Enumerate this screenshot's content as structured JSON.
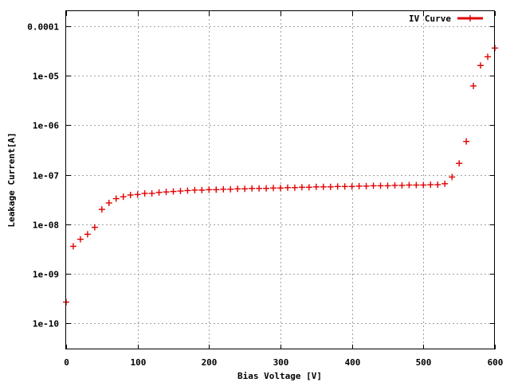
{
  "chart_data": {
    "type": "scatter",
    "xlabel": "Bias Voltage [V]",
    "ylabel": "Leakage Current[A]",
    "xlim": [
      0,
      600
    ],
    "ylim": [
      3e-11,
      0.0002
    ],
    "yscale": "log",
    "grid": true,
    "legend_position": "top-right",
    "x_ticks": [
      {
        "value": 0,
        "label": "0"
      },
      {
        "value": 100,
        "label": "100"
      },
      {
        "value": 200,
        "label": "200"
      },
      {
        "value": 300,
        "label": "300"
      },
      {
        "value": 400,
        "label": "400"
      },
      {
        "value": 500,
        "label": "500"
      },
      {
        "value": 600,
        "label": "600"
      }
    ],
    "y_ticks": [
      {
        "value": 1e-10,
        "label": "1e-10"
      },
      {
        "value": 1e-09,
        "label": "1e-09"
      },
      {
        "value": 1e-08,
        "label": "1e-08"
      },
      {
        "value": 1e-07,
        "label": "1e-07"
      },
      {
        "value": 1e-06,
        "label": "1e-06"
      },
      {
        "value": 1e-05,
        "label": "1e-05"
      },
      {
        "value": 0.0001,
        "label": "0.0001"
      }
    ],
    "series": [
      {
        "name": "IV Curve",
        "color": "#e00000",
        "marker": "plus",
        "x": [
          0,
          10,
          20,
          30,
          40,
          50,
          60,
          70,
          80,
          90,
          100,
          110,
          120,
          130,
          140,
          150,
          160,
          170,
          180,
          190,
          200,
          210,
          220,
          230,
          240,
          250,
          260,
          270,
          280,
          290,
          300,
          310,
          320,
          330,
          340,
          350,
          360,
          370,
          380,
          390,
          400,
          410,
          420,
          430,
          440,
          450,
          460,
          470,
          480,
          490,
          500,
          510,
          520,
          530,
          540,
          550,
          560,
          570,
          580,
          590,
          600
        ],
        "y": [
          2.7e-10,
          3.6e-09,
          5e-09,
          6.3e-09,
          8.7e-09,
          2e-08,
          2.7e-08,
          3.3e-08,
          3.6e-08,
          3.9e-08,
          4e-08,
          4.2e-08,
          4.2e-08,
          4.4e-08,
          4.5e-08,
          4.6e-08,
          4.7e-08,
          4.8e-08,
          4.9e-08,
          4.9e-08,
          5e-08,
          5e-08,
          5.1e-08,
          5.1e-08,
          5.2e-08,
          5.2e-08,
          5.3e-08,
          5.3e-08,
          5.3e-08,
          5.4e-08,
          5.4e-08,
          5.5e-08,
          5.5e-08,
          5.6e-08,
          5.6e-08,
          5.7e-08,
          5.7e-08,
          5.7e-08,
          5.8e-08,
          5.8e-08,
          5.8e-08,
          5.9e-08,
          5.9e-08,
          6e-08,
          6e-08,
          6e-08,
          6.1e-08,
          6.1e-08,
          6.2e-08,
          6.2e-08,
          6.2e-08,
          6.3e-08,
          6.3e-08,
          6.6e-08,
          9e-08,
          1.7e-07,
          4.7e-07,
          6.2e-06,
          1.6e-05,
          2.4e-05,
          3.6e-05
        ]
      }
    ]
  }
}
